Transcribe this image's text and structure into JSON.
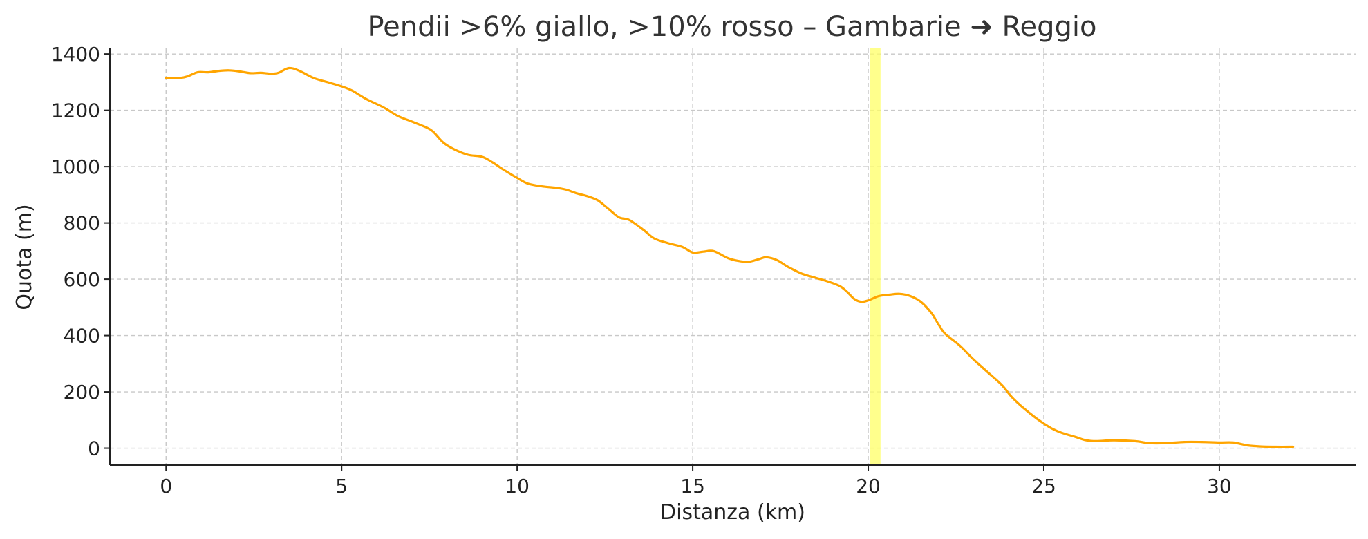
{
  "chart_data": {
    "type": "line",
    "title": "Pendii >6% giallo, >10% rosso – Gambarie ➜ Reggio",
    "xlabel": "Distanza (km)",
    "ylabel": "Quota (m)",
    "xlim": [
      -1.6,
      33.9
    ],
    "ylim": [
      -60,
      1420
    ],
    "xticks": [
      0,
      5,
      10,
      15,
      20,
      25,
      30
    ],
    "yticks": [
      0,
      200,
      400,
      600,
      800,
      1000,
      1200,
      1400
    ],
    "grid": true,
    "line_color": "#FFA500",
    "highlight_color": "#FFFF66",
    "highlight_spans": [
      {
        "from": 20.05,
        "to": 20.35,
        "class": ">6%"
      }
    ],
    "series": [
      {
        "x": [
          0,
          0.4,
          0.6,
          0.9,
          1.2,
          1.5,
          1.8,
          2.1,
          2.4,
          2.7,
          3.0,
          3.2,
          3.5,
          3.8,
          4.2,
          4.6,
          5.0,
          5.3,
          5.7,
          6.2,
          6.6,
          7.0,
          7.4,
          7.6,
          7.9,
          8.2,
          8.6,
          9.0,
          9.3,
          9.6,
          10.0,
          10.3,
          10.7,
          11.1,
          11.4,
          11.7,
          12.0,
          12.3,
          12.6,
          12.9,
          13.2,
          13.6,
          13.9,
          14.3,
          14.7,
          15.0,
          15.3,
          15.6,
          16.0,
          16.3,
          16.6,
          16.9,
          17.1,
          17.4,
          17.7,
          18.1,
          18.5,
          18.9,
          19.2,
          19.4,
          19.6,
          19.8,
          20.0,
          20.3,
          20.6,
          20.9,
          21.2,
          21.5,
          21.8,
          22.0,
          22.2,
          22.6,
          23.0,
          23.4,
          23.8,
          24.1,
          24.4,
          24.8,
          25.2,
          25.5,
          25.9,
          26.2,
          26.5,
          27.0,
          27.6,
          28.0,
          28.5,
          29.0,
          29.5,
          30.0,
          30.4,
          30.8,
          31.2,
          31.6,
          32.1
        ],
        "y": [
          1315,
          1315,
          1320,
          1335,
          1335,
          1340,
          1342,
          1338,
          1332,
          1333,
          1330,
          1333,
          1350,
          1340,
          1315,
          1300,
          1285,
          1270,
          1240,
          1210,
          1180,
          1160,
          1140,
          1125,
          1085,
          1062,
          1042,
          1035,
          1015,
          990,
          960,
          940,
          930,
          925,
          918,
          905,
          895,
          880,
          850,
          820,
          810,
          775,
          745,
          728,
          715,
          695,
          698,
          700,
          675,
          665,
          662,
          672,
          678,
          668,
          645,
          620,
          605,
          590,
          575,
          555,
          530,
          520,
          525,
          540,
          545,
          548,
          540,
          520,
          480,
          440,
          405,
          365,
          315,
          270,
          225,
          180,
          145,
          105,
          72,
          55,
          40,
          28,
          25,
          28,
          25,
          18,
          18,
          22,
          22,
          20,
          20,
          10,
          6,
          5,
          5
        ]
      }
    ]
  }
}
